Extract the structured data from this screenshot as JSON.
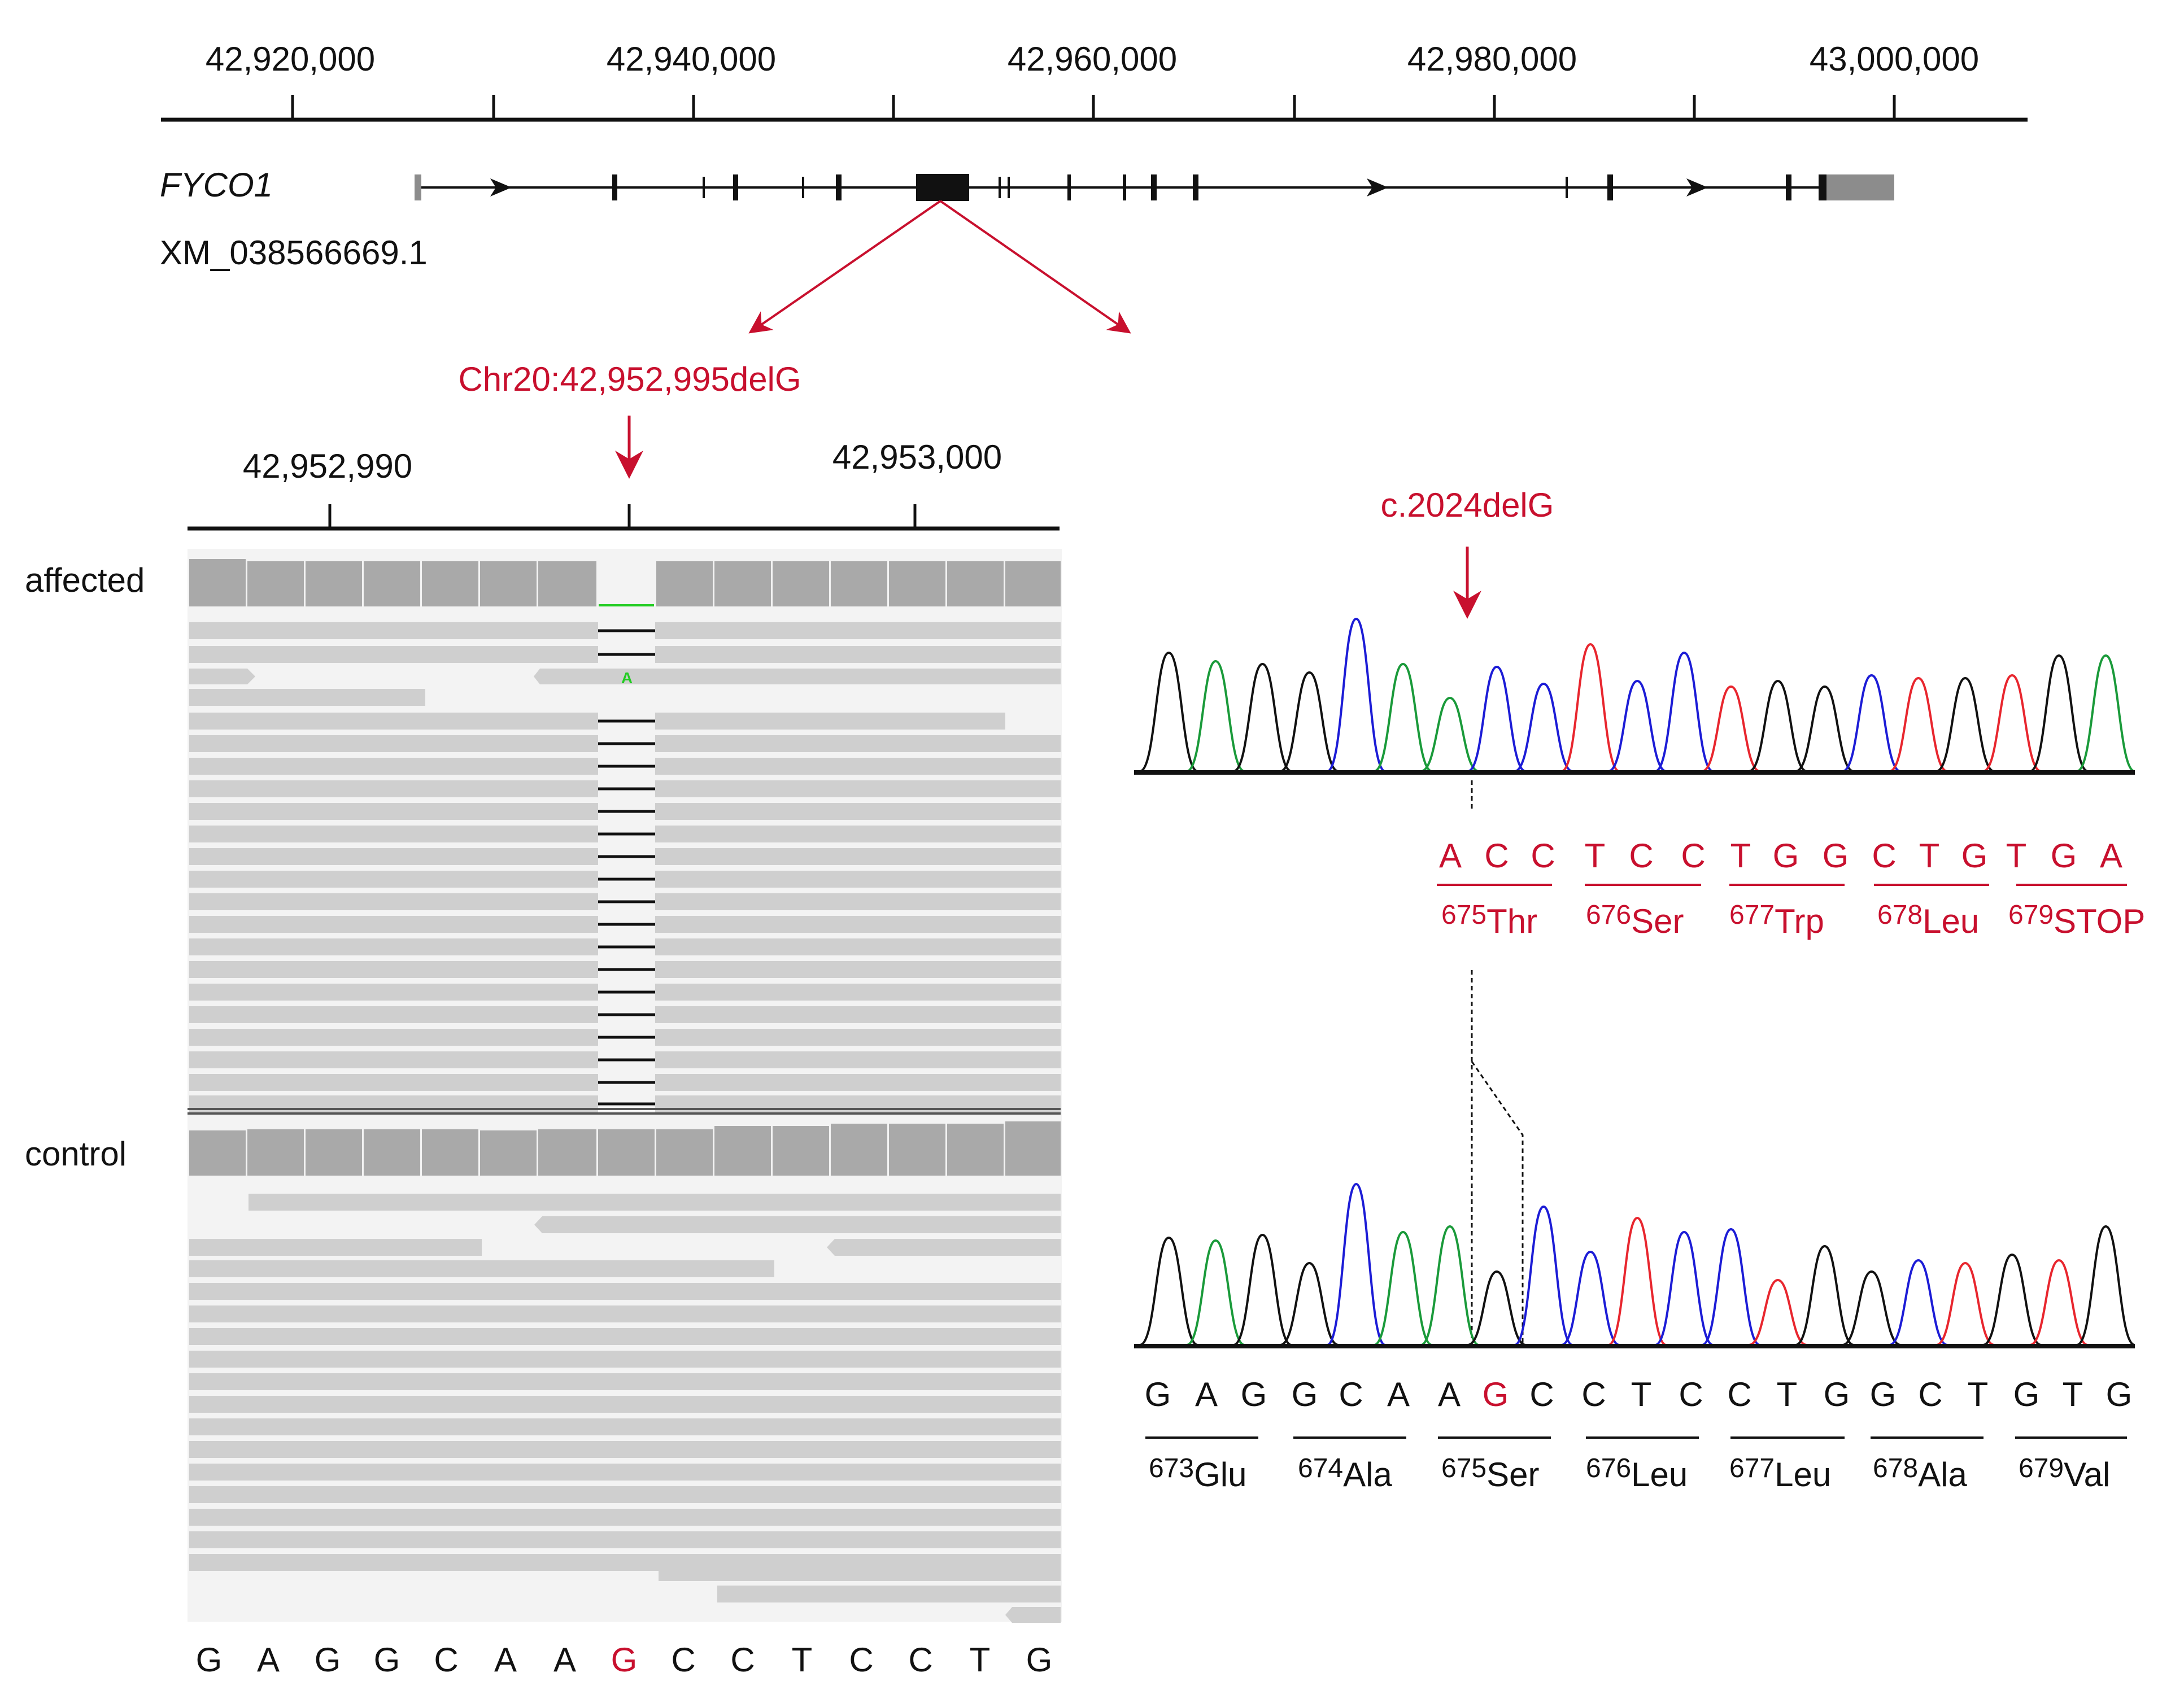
{
  "colors": {
    "red": "#c8102e",
    "black": "#111111",
    "gray": "#a9a9a9",
    "read_gray": "#cfcfcf",
    "trace_black": "#111111",
    "trace_green": "#1a9a3a",
    "trace_blue": "#1c1cd6",
    "trace_red": "#e8262e",
    "insert_green": "#22cc22"
  },
  "genome_ruler": {
    "ticks": [
      "42,920,000",
      "42,940,000",
      "42,960,000",
      "42,980,000",
      "43,000,000"
    ]
  },
  "gene": {
    "symbol": "FYCO1",
    "transcript": "XM_038566669.1"
  },
  "variant_genomic": "Chr20:42,952,995delG",
  "zoom_ruler": {
    "left_tick": "42,952,990",
    "right_tick": "42,953,000"
  },
  "igv": {
    "affected_label": "affected",
    "control_label": "control",
    "inserted_base": "A",
    "reference_sequence": [
      "G",
      "A",
      "G",
      "G",
      "C",
      "A",
      "A",
      "G",
      "C",
      "C",
      "T",
      "C",
      "C",
      "T",
      "G"
    ],
    "highlight_index": 7
  },
  "sanger_affected": {
    "variant_label": "c.2024delG",
    "bases": [
      "A",
      "C",
      "C",
      "T",
      "C",
      "C",
      "T",
      "G",
      "G",
      "C",
      "T",
      "G",
      "T",
      "G",
      "A"
    ],
    "codons": [
      {
        "num": "675",
        "aa": "Thr"
      },
      {
        "num": "676",
        "aa": "Ser"
      },
      {
        "num": "677",
        "aa": "Trp"
      },
      {
        "num": "678",
        "aa": "Leu"
      },
      {
        "num": "679",
        "aa": "STOP"
      }
    ]
  },
  "sanger_control": {
    "bases": [
      "G",
      "A",
      "G",
      "G",
      "C",
      "A",
      "A",
      "G",
      "C",
      "C",
      "T",
      "C",
      "C",
      "T",
      "G",
      "G",
      "C",
      "T",
      "G",
      "T",
      "G"
    ],
    "highlight_index": 7,
    "codons": [
      {
        "num": "673",
        "aa": "Glu"
      },
      {
        "num": "674",
        "aa": "Ala"
      },
      {
        "num": "675",
        "aa": "Ser"
      },
      {
        "num": "676",
        "aa": "Leu"
      },
      {
        "num": "677",
        "aa": "Leu"
      },
      {
        "num": "678",
        "aa": "Ala"
      },
      {
        "num": "679",
        "aa": "Val"
      }
    ]
  }
}
